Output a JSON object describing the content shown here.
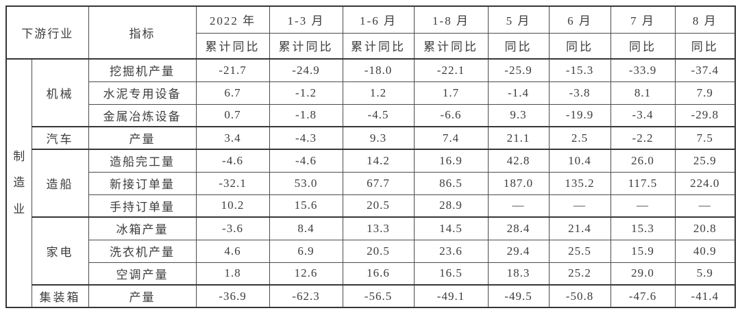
{
  "colors": {
    "border": "#4a4a4a",
    "border_dark": "#353535",
    "text": "#3c3c3c",
    "background": "#ffffff"
  },
  "chart_data": {
    "type": "table",
    "title": "",
    "corner_headers": {
      "industry": "下游行业",
      "indicator": "指标"
    },
    "period_columns": [
      {
        "label": "2022 年",
        "metric": "累计同比"
      },
      {
        "label": "1-3 月",
        "metric": "累计同比"
      },
      {
        "label": "1-6 月",
        "metric": "累计同比"
      },
      {
        "label": "1-8 月",
        "metric": "累计同比"
      },
      {
        "label": "5 月",
        "metric": "同比"
      },
      {
        "label": "6 月",
        "metric": "同比"
      },
      {
        "label": "7 月",
        "metric": "同比"
      },
      {
        "label": "8 月",
        "metric": "同比"
      }
    ],
    "sector": "制造业",
    "groups": [
      {
        "industry": "机械",
        "rows": [
          {
            "indicator": "挖掘机产量",
            "values": [
              "-21.7",
              "-24.9",
              "-18.0",
              "-22.1",
              "-25.9",
              "-15.3",
              "-33.9",
              "-37.4"
            ]
          },
          {
            "indicator": "水泥专用设备",
            "values": [
              "6.7",
              "-1.2",
              "1.2",
              "1.7",
              "-1.4",
              "-3.8",
              "8.1",
              "7.9"
            ]
          },
          {
            "indicator": "金属冶炼设备",
            "values": [
              "0.7",
              "-1.8",
              "-4.5",
              "-6.6",
              "9.3",
              "-19.9",
              "-3.4",
              "-29.8"
            ]
          }
        ]
      },
      {
        "industry": "汽车",
        "rows": [
          {
            "indicator": "产量",
            "values": [
              "3.4",
              "-4.3",
              "9.3",
              "7.4",
              "21.1",
              "2.5",
              "-2.2",
              "7.5"
            ]
          }
        ]
      },
      {
        "industry": "造船",
        "rows": [
          {
            "indicator": "造船完工量",
            "values": [
              "-4.6",
              "-4.6",
              "14.2",
              "16.9",
              "42.8",
              "10.4",
              "26.0",
              "25.9"
            ]
          },
          {
            "indicator": "新接订单量",
            "values": [
              "-32.1",
              "53.0",
              "67.7",
              "86.5",
              "187.0",
              "135.2",
              "117.5",
              "224.0"
            ]
          },
          {
            "indicator": "手持订单量",
            "values": [
              "10.2",
              "15.6",
              "20.5",
              "28.9",
              "—",
              "—",
              "—",
              "—"
            ]
          }
        ]
      },
      {
        "industry": "家电",
        "rows": [
          {
            "indicator": "冰箱产量",
            "values": [
              "-3.6",
              "8.4",
              "13.3",
              "14.5",
              "28.4",
              "21.4",
              "15.3",
              "20.8"
            ]
          },
          {
            "indicator": "洗衣机产量",
            "values": [
              "4.6",
              "6.9",
              "20.5",
              "23.6",
              "29.4",
              "25.5",
              "15.9",
              "40.9"
            ]
          },
          {
            "indicator": "空调产量",
            "values": [
              "1.8",
              "12.6",
              "16.6",
              "16.5",
              "18.3",
              "25.2",
              "29.0",
              "5.9"
            ]
          }
        ]
      },
      {
        "industry": "集装箱",
        "rows": [
          {
            "indicator": "产量",
            "values": [
              "-36.9",
              "-62.3",
              "-56.5",
              "-49.1",
              "-49.5",
              "-50.8",
              "-47.6",
              "-41.4"
            ]
          }
        ]
      }
    ]
  }
}
